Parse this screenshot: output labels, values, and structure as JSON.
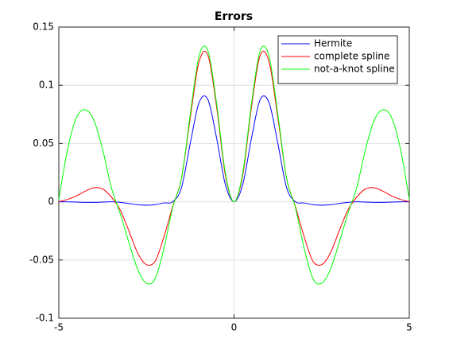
{
  "chart_data": {
    "type": "line",
    "title": "Errors",
    "x": [
      -5,
      -4.75,
      -4.5,
      -4.25,
      -4,
      -3.75,
      -3.5,
      -3.25,
      -3,
      -2.75,
      -2.5,
      -2.25,
      -2,
      -1.75,
      -1.5,
      -1.25,
      -1,
      -0.75,
      -0.5,
      -0.25,
      0,
      0.25,
      0.5,
      0.75,
      1,
      1.25,
      1.5,
      1.75,
      2,
      2.25,
      2.5,
      2.75,
      3,
      3.25,
      3.5,
      3.75,
      4,
      4.25,
      4.5,
      4.75,
      5
    ],
    "series": [
      {
        "name": "Hermite",
        "color": "#0000ff",
        "values": [
          0,
          -0.0001,
          -0.0003,
          -0.0005,
          -0.0005,
          -0.0003,
          0,
          -0.0005,
          -0.0015,
          -0.0025,
          -0.003,
          -0.0025,
          -0.001,
          0,
          0.012,
          0.05,
          0.085,
          0.088,
          0.055,
          0.015,
          0,
          0.015,
          0.055,
          0.088,
          0.085,
          0.05,
          0.012,
          0,
          -0.001,
          -0.0025,
          -0.003,
          -0.0025,
          -0.0015,
          -0.0005,
          0,
          -0.0003,
          -0.0005,
          -0.0005,
          -0.0003,
          -0.0001,
          0
        ]
      },
      {
        "name": "complete spline",
        "color": "#ff0000",
        "values": [
          0,
          0.002,
          0.005,
          0.009,
          0.012,
          0.011,
          0.004,
          -0.007,
          -0.025,
          -0.044,
          -0.054,
          -0.051,
          -0.03,
          -0.004,
          0.02,
          0.072,
          0.12,
          0.126,
          0.082,
          0.023,
          0,
          0.023,
          0.082,
          0.126,
          0.12,
          0.072,
          0.02,
          -0.004,
          -0.03,
          -0.051,
          -0.054,
          -0.044,
          -0.025,
          -0.007,
          0.004,
          0.011,
          0.012,
          0.009,
          0.005,
          0.002,
          0
        ]
      },
      {
        "name": "not-a-knot spline",
        "color": "#00ff00",
        "values": [
          0.002,
          0.045,
          0.072,
          0.079,
          0.07,
          0.045,
          0.012,
          -0.01,
          -0.035,
          -0.058,
          -0.07,
          -0.066,
          -0.04,
          -0.005,
          0.02,
          0.075,
          0.125,
          0.13,
          0.085,
          0.025,
          0,
          0.025,
          0.085,
          0.13,
          0.125,
          0.075,
          0.02,
          -0.005,
          -0.04,
          -0.066,
          -0.07,
          -0.058,
          -0.035,
          -0.01,
          0.012,
          0.045,
          0.07,
          0.079,
          0.072,
          0.045,
          0.002
        ]
      }
    ],
    "xlim": [
      -5,
      5
    ],
    "ylim": [
      -0.1,
      0.15
    ],
    "xticks": [
      -5,
      0,
      5
    ],
    "yticks": [
      -0.1,
      -0.05,
      0,
      0.05,
      0.1,
      0.15
    ],
    "grid": true,
    "legend": "northeast"
  }
}
